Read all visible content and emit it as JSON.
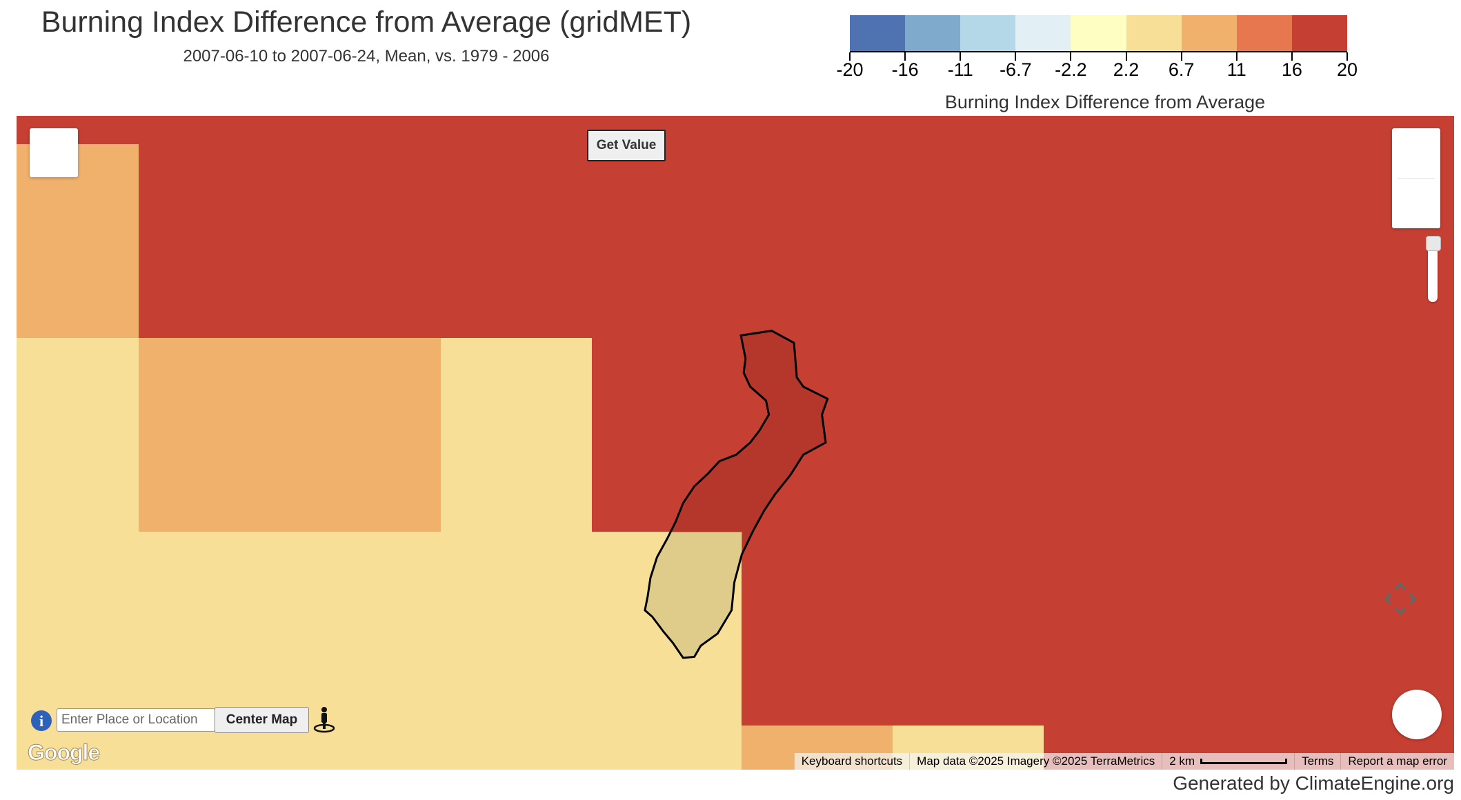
{
  "header": {
    "title": "Burning Index Difference from Average (gridMET)",
    "subtitle": "2007-06-10 to 2007-06-24, Mean, vs. 1979 - 2006"
  },
  "legend": {
    "title": "Burning Index Difference from Average",
    "ticks": [
      "-20",
      "-16",
      "-11",
      "-6.7",
      "-2.2",
      "2.2",
      "6.7",
      "11",
      "16",
      "20"
    ],
    "colors": [
      "#4f73b0",
      "#7faacc",
      "#b4d8e7",
      "#e2f0f6",
      "#fefec3",
      "#f8df97",
      "#f0b16d",
      "#e6774f",
      "#c53f32"
    ]
  },
  "map": {
    "get_value_label": "Get Value",
    "place_placeholder": "Enter Place or Location",
    "center_map_label": "Center Map",
    "google_logo": "Google",
    "attribution": {
      "keyboard": "Keyboard shortcuts",
      "map_data": "Map data ©2025 Imagery ©2025 TerraMetrics",
      "scale": "2 km",
      "terms": "Terms",
      "report": "Report a map error"
    },
    "icons": [
      "fullscreen-icon",
      "zoom-in-icon",
      "zoom-out-icon",
      "zoom-slider",
      "info-icon",
      "pegman-icon",
      "pan-control-icon"
    ]
  },
  "footer": {
    "text": "Generated by ClimateEngine.org"
  }
}
